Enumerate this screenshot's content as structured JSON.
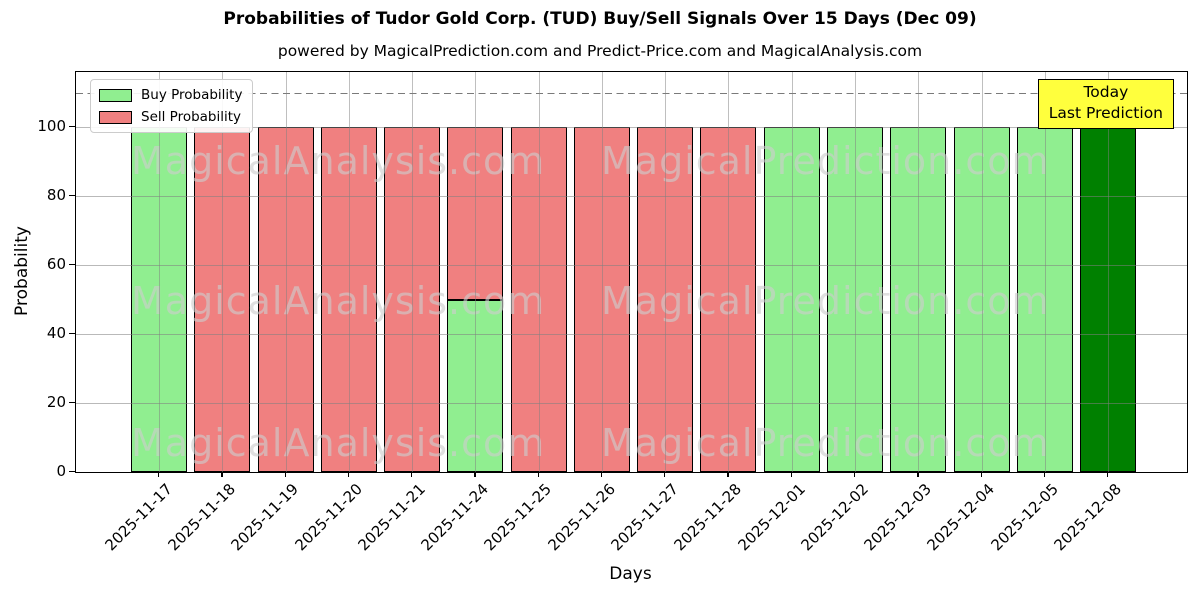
{
  "title": "Probabilities of Tudor Gold Corp. (TUD) Buy/Sell Signals Over 15 Days (Dec 09)",
  "subtitle": "powered by MagicalPrediction.com and Predict-Price.com and MagicalAnalysis.com",
  "legend": {
    "buy_label": "Buy Probability",
    "sell_label": "Sell Probability"
  },
  "annotation": {
    "line1": "Today",
    "line2": "Last Prediction",
    "bg_color": "#FFFF3D"
  },
  "axes": {
    "xlabel": "Days",
    "ylabel": "Probability",
    "yticks": [
      0,
      20,
      40,
      60,
      80,
      100
    ],
    "ylim": [
      0,
      116
    ],
    "dashed_line_y": 110,
    "grid": true
  },
  "watermarks": {
    "left": "MagicalAnalysis.com",
    "right": "MagicalPrediction.com"
  },
  "chart_data": {
    "type": "bar",
    "stacked": true,
    "title": "Probabilities of Tudor Gold Corp. (TUD) Buy/Sell Signals Over 15 Days (Dec 09)",
    "xlabel": "Days",
    "ylabel": "Probability",
    "ylim": [
      0,
      116
    ],
    "grid": true,
    "legend_position": "upper left",
    "categories": [
      "2025-11-17",
      "2025-11-18",
      "2025-11-19",
      "2025-11-20",
      "2025-11-21",
      "2025-11-24",
      "2025-11-25",
      "2025-11-26",
      "2025-11-27",
      "2025-11-28",
      "2025-12-01",
      "2025-12-02",
      "2025-12-03",
      "2025-12-04",
      "2025-12-05",
      "2025-12-08"
    ],
    "series": [
      {
        "name": "Buy Probability",
        "color": "#90EE90",
        "values": [
          100,
          0,
          0,
          0,
          0,
          50,
          0,
          0,
          0,
          0,
          100,
          100,
          100,
          100,
          100,
          0
        ]
      },
      {
        "name": "Sell Probability",
        "color": "#F08080",
        "values": [
          0,
          100,
          100,
          100,
          100,
          50,
          100,
          100,
          100,
          100,
          0,
          0,
          0,
          0,
          0,
          0
        ]
      },
      {
        "name": "Today Last Prediction",
        "color": "#008000",
        "values": [
          0,
          0,
          0,
          0,
          0,
          0,
          0,
          0,
          0,
          0,
          0,
          0,
          0,
          0,
          0,
          100
        ]
      }
    ]
  }
}
